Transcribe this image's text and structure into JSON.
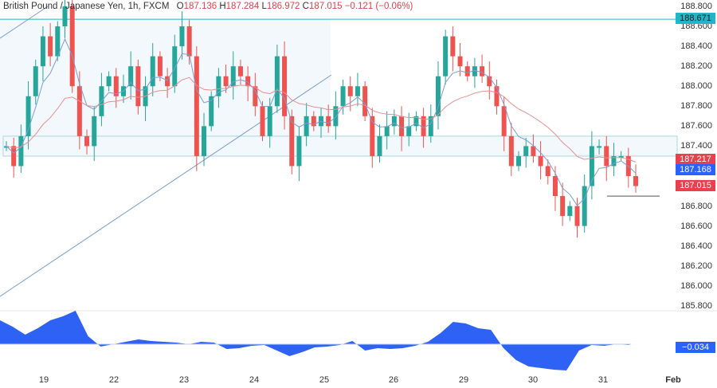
{
  "header": {
    "symbol": "British Pound / Japanese Yen, 1h, FXCM",
    "open_label": "O",
    "open": "187.136",
    "high_label": "H",
    "high": "187.284",
    "low_label": "L",
    "low": "186.972",
    "close_label": "C",
    "close": "187.015",
    "change": "−0.121 (−0.06%)"
  },
  "price_labels": [
    {
      "value": "188.671",
      "price": 188.671,
      "bg": "#22b5c8",
      "fg": "#1a1a1a"
    },
    {
      "value": "187.217",
      "price": 187.217,
      "bg": "#e8414d",
      "fg": "#ffffff"
    },
    {
      "value": "187.168",
      "price": 187.168,
      "bg": "#2962ff",
      "fg": "#ffffff"
    },
    {
      "value": "187.015",
      "price": 187.015,
      "bg": "#e8414d",
      "fg": "#ffffff"
    }
  ],
  "oscillator_label": {
    "value": "−0.034",
    "bg": "#2962ff"
  },
  "colors": {
    "up": "#26a69a",
    "down": "#ef5350",
    "ma_fast": "#7a9cd6",
    "ma_slow": "#e78f93",
    "osc": "#2e62f5",
    "zone": "#f2f8fb",
    "zone_line": "#a9d7de",
    "trendline": "#7a9cd6"
  },
  "chart_data": {
    "type": "candlestick",
    "title": "British Pound / Japanese Yen, 1h, FXCM",
    "xlabel": "",
    "ylabel": "",
    "x_ticks": [
      "19",
      "22",
      "23",
      "24",
      "25",
      "26",
      "29",
      "30",
      "31",
      "Feb"
    ],
    "y_ticks": [
      "188.800",
      "188.600",
      "188.400",
      "188.200",
      "188.000",
      "187.800",
      "187.600",
      "187.400",
      "187.200",
      "187.000",
      "186.800",
      "186.600",
      "186.400",
      "186.200",
      "186.000",
      "185.800"
    ],
    "ylim": [
      185.75,
      188.85
    ],
    "last": {
      "open": 187.136,
      "high": 187.284,
      "low": 186.972,
      "close": 187.015,
      "change": -0.121,
      "change_pct": -0.06
    },
    "horizontal_levels": [
      188.671,
      187.5,
      187.3
    ],
    "resistance_line": 188.671,
    "support_zone": [
      187.3,
      187.5
    ],
    "marker_line": 186.9,
    "path": [
      187.4,
      187.2,
      187.5,
      187.9,
      188.2,
      188.5,
      188.3,
      188.6,
      188.8,
      188.0,
      187.5,
      187.4,
      187.7,
      188.0,
      188.1,
      187.9,
      188.0,
      188.2,
      187.8,
      188.0,
      188.3,
      188.1,
      188.0,
      188.4,
      188.6,
      188.3,
      187.3,
      187.6,
      187.9,
      188.1,
      188.0,
      188.2,
      188.1,
      188.0,
      187.8,
      187.5,
      187.8,
      188.3,
      187.7,
      187.2,
      187.5,
      187.7,
      187.6,
      187.7,
      187.6,
      187.8,
      188.0,
      187.9,
      188.0,
      187.7,
      187.3,
      187.5,
      187.6,
      187.7,
      187.5,
      187.6,
      187.7,
      187.5,
      187.7,
      188.1,
      188.5,
      188.3,
      188.2,
      188.1,
      188.2,
      188.1,
      188.0,
      187.8,
      187.5,
      187.2,
      187.3,
      187.4,
      187.3,
      187.2,
      187.1,
      186.9,
      186.7,
      186.8,
      186.6,
      187.0,
      187.4,
      187.4,
      187.2,
      187.3,
      187.3,
      187.1,
      187.0
    ],
    "oscillator": {
      "last": -0.034,
      "zero_line": true
    }
  }
}
